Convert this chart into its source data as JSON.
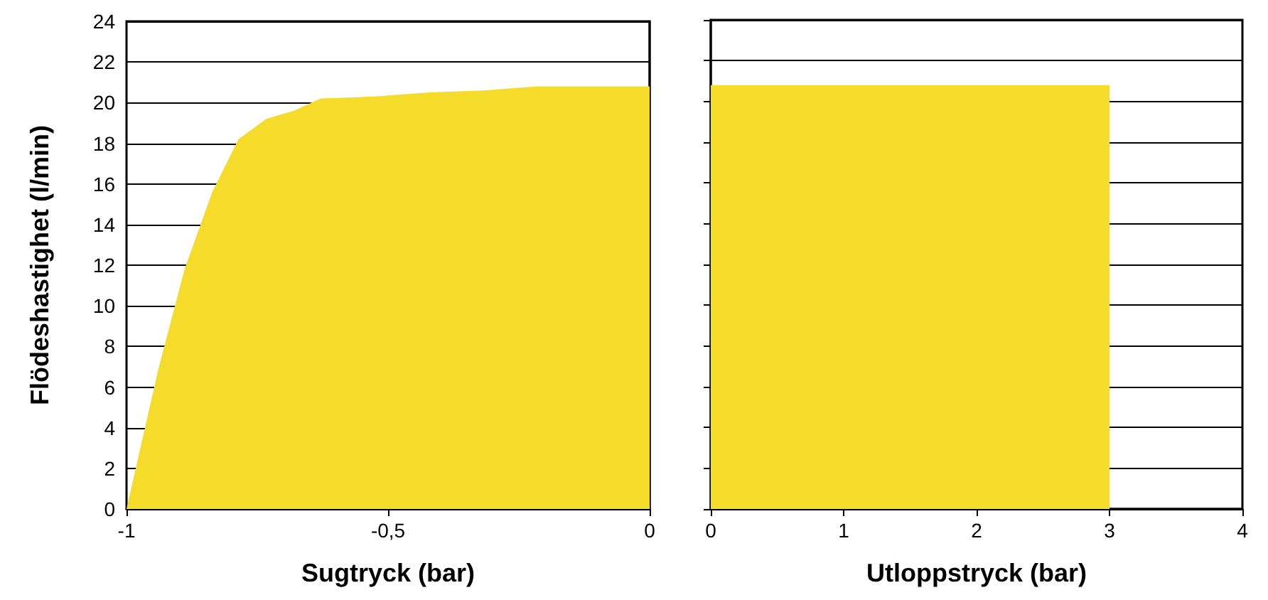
{
  "chart_data": [
    {
      "type": "area",
      "xlabel": "Sugtryck (bar)",
      "ylabel": "Flödeshastighet (l/min)",
      "x": [
        -1,
        -0.94,
        -0.889,
        -0.836,
        -0.786,
        -0.733,
        -0.68,
        -0.629,
        -0.526,
        -0.422,
        -0.318,
        -0.215,
        0
      ],
      "series": [
        {
          "color": "#f6dc2a",
          "values": [
            0,
            6.8,
            11.8,
            15.6,
            18.2,
            19.2,
            19.6,
            20.2,
            20.3,
            20.5,
            20.6,
            20.8,
            20.8
          ]
        }
      ],
      "xlim": [
        -1,
        0
      ],
      "xticks": [
        -1,
        {
          "value": -0.5,
          "label": "-0,5"
        },
        0
      ],
      "ylim": [
        0,
        24
      ],
      "yticks": [
        0,
        2,
        4,
        6,
        8,
        10,
        12,
        14,
        16,
        18,
        20,
        22,
        24
      ],
      "grid": "y"
    },
    {
      "type": "area",
      "xlabel": "Utloppstryck (bar)",
      "x": [
        0,
        3
      ],
      "series": [
        {
          "color": "#f6dc2a",
          "values": [
            20.8,
            20.8
          ]
        }
      ],
      "xlim": [
        0,
        4
      ],
      "xticks": [
        0,
        1,
        2,
        3,
        4
      ],
      "ylim": [
        0,
        24
      ],
      "yticks": [
        0,
        2,
        4,
        6,
        8,
        10,
        12,
        14,
        16,
        18,
        20,
        22,
        24
      ],
      "grid": "y",
      "tick_labels": "x"
    }
  ]
}
